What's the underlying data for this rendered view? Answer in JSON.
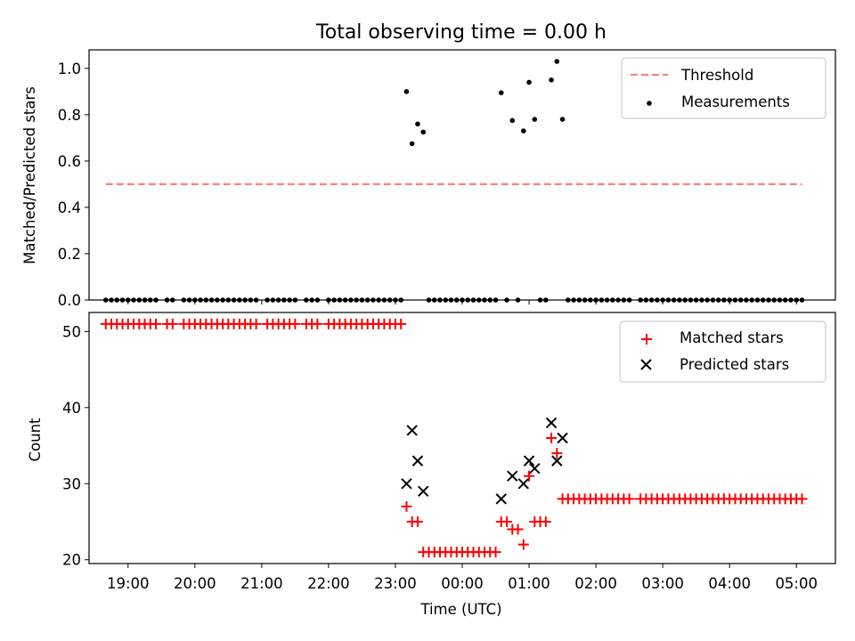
{
  "chart_data": [
    {
      "type": "scatter",
      "title": "Total observing time = 0.00 h",
      "ylabel": "Matched/Predicted stars",
      "xlim": [
        "18:25",
        "05:35"
      ],
      "ylim": [
        0,
        1.08
      ],
      "yticks": [
        "0.0",
        "0.2",
        "0.4",
        "0.6",
        "0.8",
        "1.0"
      ],
      "legend": {
        "placement": "top-right",
        "entries": [
          "Threshold",
          "Measurements"
        ]
      },
      "colors": {
        "threshold": "#ff7f7f",
        "measurements": "#000000"
      },
      "threshold": {
        "name": "Threshold",
        "y": 0.5,
        "x_start": "18:40",
        "x_end": "05:05"
      },
      "series": [
        {
          "name": "Measurements",
          "points": [
            [
              "18:40",
              0
            ],
            [
              "18:45",
              0
            ],
            [
              "18:50",
              0
            ],
            [
              "18:55",
              0
            ],
            [
              "19:00",
              0
            ],
            [
              "19:05",
              0
            ],
            [
              "19:10",
              0
            ],
            [
              "19:15",
              0
            ],
            [
              "19:20",
              0
            ],
            [
              "19:25",
              0
            ],
            [
              "19:35",
              0
            ],
            [
              "19:40",
              0
            ],
            [
              "19:50",
              0
            ],
            [
              "19:55",
              0
            ],
            [
              "20:00",
              0
            ],
            [
              "20:05",
              0
            ],
            [
              "20:10",
              0
            ],
            [
              "20:15",
              0
            ],
            [
              "20:20",
              0
            ],
            [
              "20:25",
              0
            ],
            [
              "20:30",
              0
            ],
            [
              "20:35",
              0
            ],
            [
              "20:40",
              0
            ],
            [
              "20:45",
              0
            ],
            [
              "20:50",
              0
            ],
            [
              "20:55",
              0
            ],
            [
              "21:05",
              0
            ],
            [
              "21:10",
              0
            ],
            [
              "21:15",
              0
            ],
            [
              "21:20",
              0
            ],
            [
              "21:25",
              0
            ],
            [
              "21:30",
              0
            ],
            [
              "21:40",
              0
            ],
            [
              "21:45",
              0
            ],
            [
              "21:50",
              0
            ],
            [
              "22:00",
              0
            ],
            [
              "22:05",
              0
            ],
            [
              "22:10",
              0
            ],
            [
              "22:15",
              0
            ],
            [
              "22:20",
              0
            ],
            [
              "22:25",
              0
            ],
            [
              "22:30",
              0
            ],
            [
              "22:35",
              0
            ],
            [
              "22:40",
              0
            ],
            [
              "22:45",
              0
            ],
            [
              "22:50",
              0
            ],
            [
              "22:55",
              0
            ],
            [
              "23:00",
              0
            ],
            [
              "23:05",
              0
            ],
            [
              "23:10",
              0.9
            ],
            [
              "23:15",
              0.675
            ],
            [
              "23:20",
              0.76
            ],
            [
              "23:25",
              0.725
            ],
            [
              "23:30",
              0
            ],
            [
              "23:35",
              0
            ],
            [
              "23:40",
              0
            ],
            [
              "23:45",
              0
            ],
            [
              "23:50",
              0
            ],
            [
              "23:55",
              0
            ],
            [
              "00:00",
              0
            ],
            [
              "00:05",
              0
            ],
            [
              "00:10",
              0
            ],
            [
              "00:15",
              0
            ],
            [
              "00:20",
              0
            ],
            [
              "00:25",
              0
            ],
            [
              "00:30",
              0
            ],
            [
              "00:35",
              0.895
            ],
            [
              "00:40",
              0
            ],
            [
              "00:45",
              0.775
            ],
            [
              "00:50",
              0
            ],
            [
              "00:55",
              0.73
            ],
            [
              "01:00",
              0.94
            ],
            [
              "01:05",
              0.78
            ],
            [
              "01:10",
              0
            ],
            [
              "01:15",
              0
            ],
            [
              "01:20",
              0.95
            ],
            [
              "01:25",
              1.03
            ],
            [
              "01:30",
              0.78
            ],
            [
              "01:35",
              0
            ],
            [
              "01:40",
              0
            ],
            [
              "01:45",
              0
            ],
            [
              "01:50",
              0
            ],
            [
              "01:55",
              0
            ],
            [
              "02:00",
              0
            ],
            [
              "02:05",
              0
            ],
            [
              "02:10",
              0
            ],
            [
              "02:15",
              0
            ],
            [
              "02:20",
              0
            ],
            [
              "02:25",
              0
            ],
            [
              "02:30",
              0
            ],
            [
              "02:40",
              0
            ],
            [
              "02:45",
              0
            ],
            [
              "02:50",
              0
            ],
            [
              "02:55",
              0
            ],
            [
              "03:00",
              0
            ],
            [
              "03:05",
              0
            ],
            [
              "03:10",
              0
            ],
            [
              "03:15",
              0
            ],
            [
              "03:20",
              0
            ],
            [
              "03:25",
              0
            ],
            [
              "03:30",
              0
            ],
            [
              "03:35",
              0
            ],
            [
              "03:40",
              0
            ],
            [
              "03:45",
              0
            ],
            [
              "03:50",
              0
            ],
            [
              "03:55",
              0
            ],
            [
              "04:00",
              0
            ],
            [
              "04:05",
              0
            ],
            [
              "04:10",
              0
            ],
            [
              "04:15",
              0
            ],
            [
              "04:20",
              0
            ],
            [
              "04:25",
              0
            ],
            [
              "04:30",
              0
            ],
            [
              "04:35",
              0
            ],
            [
              "04:40",
              0
            ],
            [
              "04:45",
              0
            ],
            [
              "04:50",
              0
            ],
            [
              "04:55",
              0
            ],
            [
              "05:00",
              0
            ],
            [
              "05:05",
              0
            ]
          ]
        }
      ]
    },
    {
      "type": "scatter",
      "xlabel": "Time (UTC)",
      "ylabel": "Count",
      "xlim": [
        "18:25",
        "05:35"
      ],
      "ylim": [
        19.5,
        52.5
      ],
      "xticks": [
        "19:00",
        "20:00",
        "21:00",
        "22:00",
        "23:00",
        "00:00",
        "01:00",
        "02:00",
        "03:00",
        "04:00",
        "05:00"
      ],
      "yticks": [
        "20",
        "30",
        "40",
        "50"
      ],
      "legend": {
        "placement": "top-right",
        "entries": [
          "Matched stars",
          "Predicted stars"
        ]
      },
      "colors": {
        "matched": "#ff0000",
        "predicted": "#000000"
      },
      "series": [
        {
          "name": "Matched stars",
          "points": [
            [
              "18:40",
              51
            ],
            [
              "18:45",
              51
            ],
            [
              "18:50",
              51
            ],
            [
              "18:55",
              51
            ],
            [
              "19:00",
              51
            ],
            [
              "19:05",
              51
            ],
            [
              "19:10",
              51
            ],
            [
              "19:15",
              51
            ],
            [
              "19:20",
              51
            ],
            [
              "19:25",
              51
            ],
            [
              "19:35",
              51
            ],
            [
              "19:40",
              51
            ],
            [
              "19:50",
              51
            ],
            [
              "19:55",
              51
            ],
            [
              "20:00",
              51
            ],
            [
              "20:05",
              51
            ],
            [
              "20:10",
              51
            ],
            [
              "20:15",
              51
            ],
            [
              "20:20",
              51
            ],
            [
              "20:25",
              51
            ],
            [
              "20:30",
              51
            ],
            [
              "20:35",
              51
            ],
            [
              "20:40",
              51
            ],
            [
              "20:45",
              51
            ],
            [
              "20:50",
              51
            ],
            [
              "20:55",
              51
            ],
            [
              "21:05",
              51
            ],
            [
              "21:10",
              51
            ],
            [
              "21:15",
              51
            ],
            [
              "21:20",
              51
            ],
            [
              "21:25",
              51
            ],
            [
              "21:30",
              51
            ],
            [
              "21:40",
              51
            ],
            [
              "21:45",
              51
            ],
            [
              "21:50",
              51
            ],
            [
              "22:00",
              51
            ],
            [
              "22:05",
              51
            ],
            [
              "22:10",
              51
            ],
            [
              "22:15",
              51
            ],
            [
              "22:20",
              51
            ],
            [
              "22:25",
              51
            ],
            [
              "22:30",
              51
            ],
            [
              "22:35",
              51
            ],
            [
              "22:40",
              51
            ],
            [
              "22:45",
              51
            ],
            [
              "22:50",
              51
            ],
            [
              "22:55",
              51
            ],
            [
              "23:00",
              51
            ],
            [
              "23:05",
              51
            ],
            [
              "23:10",
              27
            ],
            [
              "23:15",
              25
            ],
            [
              "23:20",
              25
            ],
            [
              "23:25",
              21
            ],
            [
              "23:30",
              21
            ],
            [
              "23:35",
              21
            ],
            [
              "23:40",
              21
            ],
            [
              "23:45",
              21
            ],
            [
              "23:50",
              21
            ],
            [
              "23:55",
              21
            ],
            [
              "00:00",
              21
            ],
            [
              "00:05",
              21
            ],
            [
              "00:10",
              21
            ],
            [
              "00:15",
              21
            ],
            [
              "00:20",
              21
            ],
            [
              "00:25",
              21
            ],
            [
              "00:30",
              21
            ],
            [
              "00:35",
              25
            ],
            [
              "00:40",
              25
            ],
            [
              "00:45",
              24
            ],
            [
              "00:50",
              24
            ],
            [
              "00:55",
              22
            ],
            [
              "01:00",
              31
            ],
            [
              "01:05",
              25
            ],
            [
              "01:10",
              25
            ],
            [
              "01:15",
              25
            ],
            [
              "01:20",
              36
            ],
            [
              "01:25",
              34
            ],
            [
              "01:30",
              28
            ],
            [
              "01:35",
              28
            ],
            [
              "01:40",
              28
            ],
            [
              "01:45",
              28
            ],
            [
              "01:50",
              28
            ],
            [
              "01:55",
              28
            ],
            [
              "02:00",
              28
            ],
            [
              "02:05",
              28
            ],
            [
              "02:10",
              28
            ],
            [
              "02:15",
              28
            ],
            [
              "02:20",
              28
            ],
            [
              "02:25",
              28
            ],
            [
              "02:30",
              28
            ],
            [
              "02:40",
              28
            ],
            [
              "02:45",
              28
            ],
            [
              "02:50",
              28
            ],
            [
              "02:55",
              28
            ],
            [
              "03:00",
              28
            ],
            [
              "03:05",
              28
            ],
            [
              "03:10",
              28
            ],
            [
              "03:15",
              28
            ],
            [
              "03:20",
              28
            ],
            [
              "03:25",
              28
            ],
            [
              "03:30",
              28
            ],
            [
              "03:35",
              28
            ],
            [
              "03:40",
              28
            ],
            [
              "03:45",
              28
            ],
            [
              "03:50",
              28
            ],
            [
              "03:55",
              28
            ],
            [
              "04:00",
              28
            ],
            [
              "04:05",
              28
            ],
            [
              "04:10",
              28
            ],
            [
              "04:15",
              28
            ],
            [
              "04:20",
              28
            ],
            [
              "04:25",
              28
            ],
            [
              "04:30",
              28
            ],
            [
              "04:35",
              28
            ],
            [
              "04:40",
              28
            ],
            [
              "04:45",
              28
            ],
            [
              "04:50",
              28
            ],
            [
              "04:55",
              28
            ],
            [
              "05:00",
              28
            ],
            [
              "05:05",
              28
            ]
          ]
        },
        {
          "name": "Predicted stars",
          "points": [
            [
              "23:10",
              30
            ],
            [
              "23:15",
              37
            ],
            [
              "23:20",
              33
            ],
            [
              "23:25",
              29
            ],
            [
              "00:35",
              28
            ],
            [
              "00:45",
              31
            ],
            [
              "00:55",
              30
            ],
            [
              "01:00",
              33
            ],
            [
              "01:05",
              32
            ],
            [
              "01:20",
              38
            ],
            [
              "01:25",
              33
            ],
            [
              "01:30",
              36
            ]
          ]
        }
      ]
    }
  ]
}
